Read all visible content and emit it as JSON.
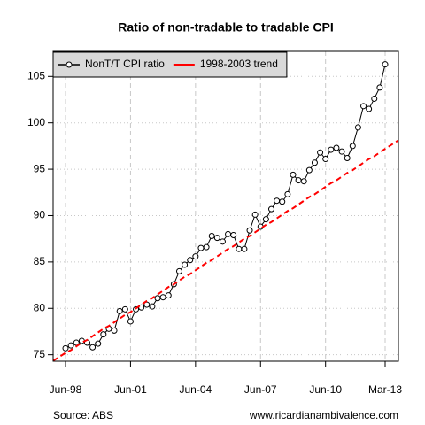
{
  "chart_data": {
    "type": "line",
    "title": "Ratio of non-tradable to tradable CPI",
    "source": "Source: ABS",
    "credit": "www.ricardianambivalence.com",
    "categories": [
      "Jun-98",
      null,
      null,
      null,
      null,
      null,
      null,
      null,
      null,
      null,
      null,
      null,
      "Jun-01",
      null,
      null,
      null,
      null,
      null,
      null,
      null,
      null,
      null,
      null,
      null,
      "Jun-04",
      null,
      null,
      null,
      null,
      null,
      null,
      null,
      null,
      null,
      null,
      null,
      "Jun-07",
      null,
      null,
      null,
      null,
      null,
      null,
      null,
      null,
      null,
      null,
      null,
      "Jun-10",
      null,
      null,
      null,
      null,
      null,
      null,
      null,
      null,
      null,
      null,
      "Mar-13"
    ],
    "series": [
      {
        "name": "NonT/T CPI ratio",
        "color": "#000000",
        "line_style": "solid",
        "marker": "circle",
        "values": [
          75.7,
          76.0,
          76.3,
          76.5,
          76.3,
          75.8,
          76.2,
          77.2,
          77.8,
          77.6,
          79.7,
          79.9,
          78.6,
          79.9,
          80.1,
          80.4,
          80.2,
          81.1,
          81.2,
          81.4,
          82.6,
          84.0,
          84.7,
          85.2,
          85.6,
          86.5,
          86.6,
          87.8,
          87.6,
          87.2,
          88.0,
          87.9,
          86.4,
          86.4,
          88.4,
          90.1,
          88.8,
          89.6,
          90.7,
          91.6,
          91.5,
          92.3,
          94.4,
          93.8,
          93.7,
          94.9,
          95.7,
          96.8,
          96.1,
          97.1,
          97.3,
          96.9,
          96.2,
          97.5,
          99.5,
          101.8,
          101.5,
          102.6,
          103.8,
          106.3
        ]
      },
      {
        "name": "1998-2003 trend",
        "color": "#ff0000",
        "line_style": "dashed",
        "marker": null,
        "values": [
          75.2,
          75.5,
          75.9,
          76.3,
          76.6,
          77.0,
          77.4,
          77.8,
          78.1,
          78.5,
          78.9,
          79.3,
          79.6,
          80.0,
          80.4,
          80.8,
          81.1,
          81.5,
          81.9,
          82.3,
          82.6,
          83.0,
          83.4,
          83.7,
          84.1,
          84.5,
          84.9,
          85.2,
          85.6,
          86.0,
          86.4,
          86.7,
          87.1,
          87.5,
          87.8,
          88.2,
          88.6,
          89.0,
          89.3,
          89.7,
          90.1,
          90.5,
          90.8,
          91.2,
          91.6,
          92.0,
          92.3,
          92.7,
          93.1,
          93.5,
          93.8,
          94.2,
          94.6,
          94.9,
          95.3,
          95.7,
          96.1,
          96.4,
          96.8,
          97.2
        ]
      }
    ],
    "ylim": [
      74.3,
      107.7
    ],
    "yticks": [
      75,
      80,
      85,
      90,
      95,
      100,
      105
    ],
    "grid": true,
    "legend": "top-left"
  }
}
